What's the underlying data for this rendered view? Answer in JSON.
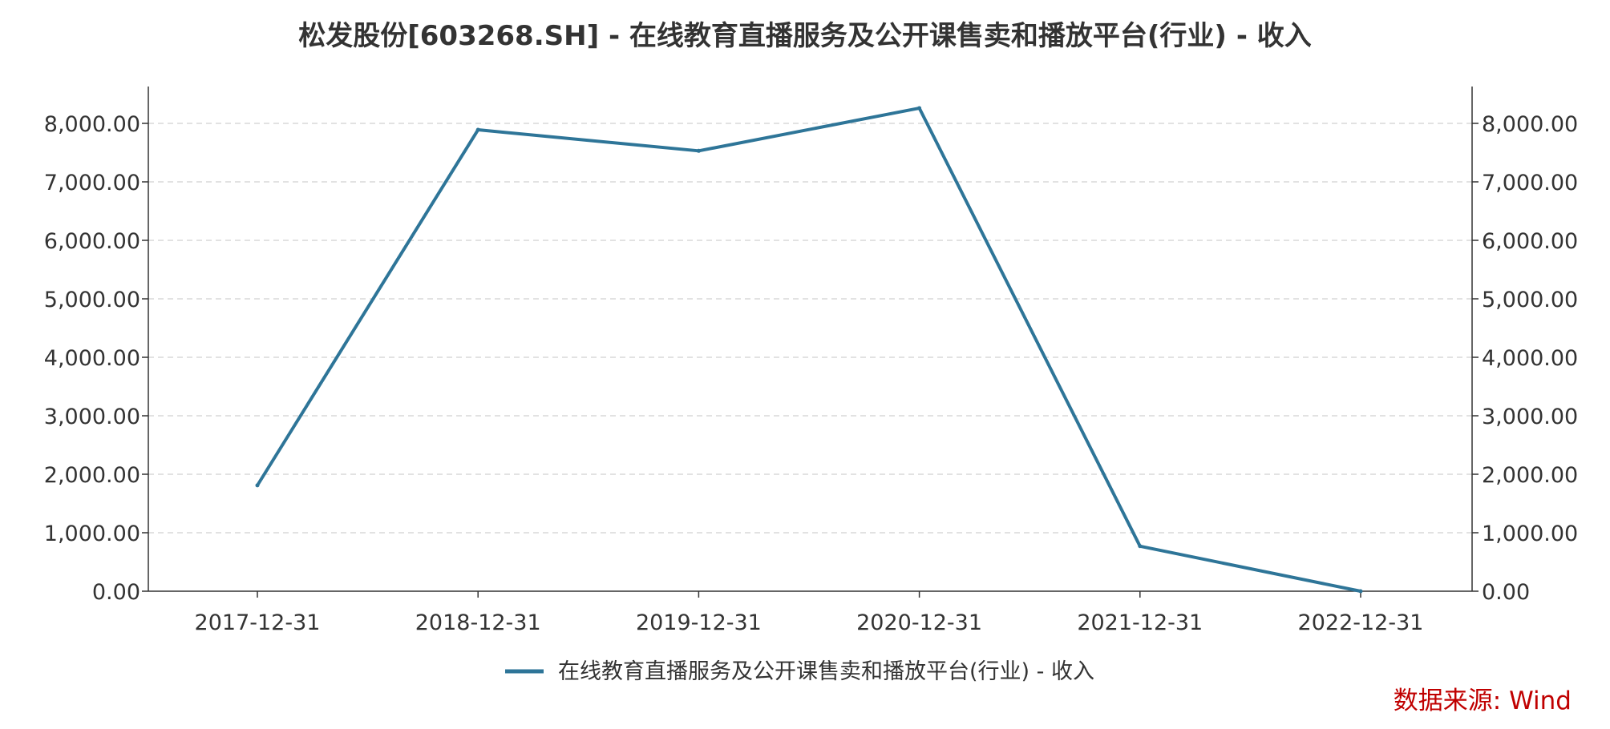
{
  "chart_data": {
    "type": "line",
    "title": "松发股份[603268.SH] - 在线教育直播服务及公开课售卖和播放平台(行业) - 收入",
    "categories": [
      "2017-12-31",
      "2018-12-31",
      "2019-12-31",
      "2020-12-31",
      "2021-12-31",
      "2022-12-31"
    ],
    "series": [
      {
        "name": "在线教育直播服务及公开课售卖和播放平台(行业) - 收入",
        "values": [
          1810,
          7890,
          7530,
          8260,
          770,
          0
        ],
        "color": "#2e7598"
      }
    ],
    "ylim": [
      0,
      8000
    ],
    "yticks": [
      "0.00",
      "1,000.00",
      "2,000.00",
      "3,000.00",
      "4,000.00",
      "5,000.00",
      "6,000.00",
      "7,000.00",
      "8,000.00"
    ],
    "ytick_values": [
      0,
      1000,
      2000,
      3000,
      4000,
      5000,
      6000,
      7000,
      8000
    ],
    "grid": true,
    "legend": "bottom-center",
    "dual_y_axis": true
  },
  "source_label": "数据来源: Wind"
}
